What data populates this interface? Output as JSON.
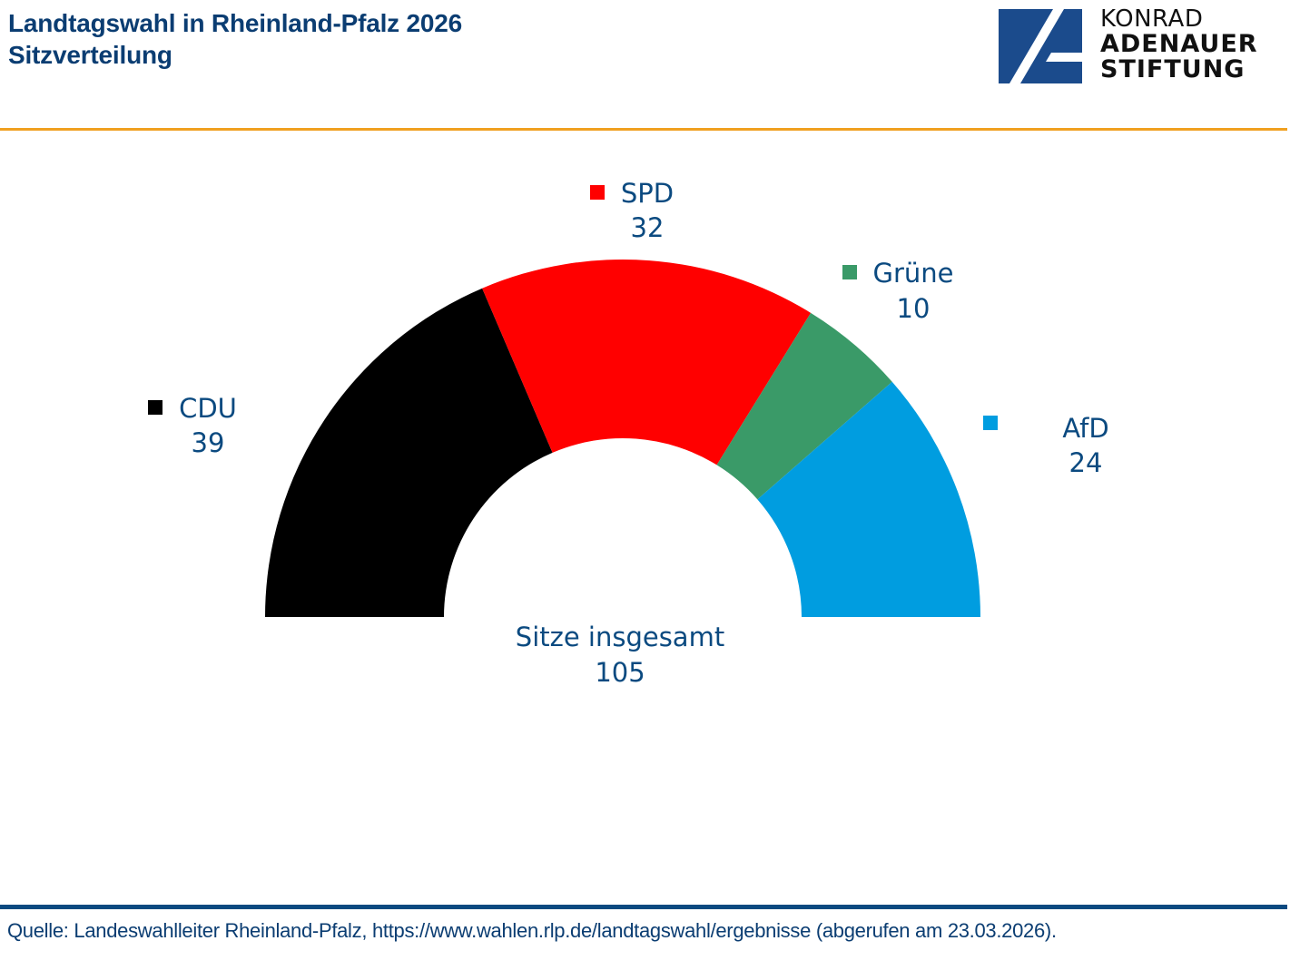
{
  "header": {
    "title_line1": "Landtagswahl in Rheinland-Pfalz 2026",
    "title_line2": "Sitzverteilung"
  },
  "logo": {
    "line1": "KONRAD",
    "line2": "ADENAUER",
    "line3": "STIFTUNG",
    "brand_color": "#1b4b8c"
  },
  "footer": {
    "source": "Quelle: Landeswahlleiter Rheinland-Pfalz, https://www.wahlen.rlp.de/landtagswahl/ergebnisse (abgerufen am 23.03.2026)."
  },
  "colors": {
    "title": "#0b3d72",
    "accent_rule": "#f0a020",
    "footer_rule": "#0b4a80",
    "label": "#0b4a80"
  },
  "chart_data": {
    "type": "pie",
    "variant": "half-donut",
    "title": "Sitzverteilung",
    "categories": [
      "CDU",
      "SPD",
      "Grüne",
      "AfD"
    ],
    "values": [
      39,
      32,
      10,
      24
    ],
    "colors": [
      "#000000",
      "#ff0000",
      "#3a9a68",
      "#009de0"
    ],
    "total_label": "Sitze insgesamt",
    "total": 105,
    "legend": "inline-labels"
  }
}
